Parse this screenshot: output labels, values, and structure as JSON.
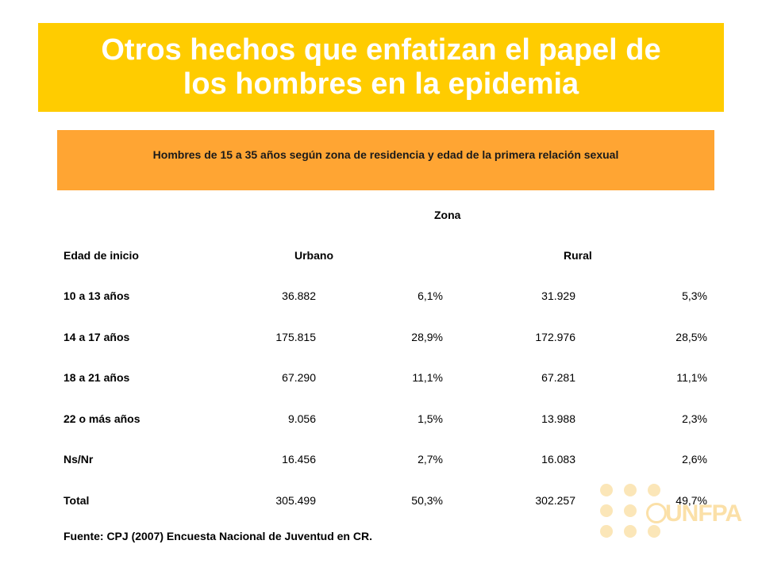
{
  "slide": {
    "title_line1": "Otros hechos que enfatizan el papel de",
    "title_line2": "los hombres en la epidemia",
    "subtitle": "Hombres de 15 a 35 años según zona de residencia y edad de la primera relación sexual"
  },
  "table": {
    "zona_header": "Zona",
    "col_edad": "Edad de inicio",
    "col_urbano": "Urbano",
    "col_rural": "Rural",
    "rows": [
      {
        "label": "10 a 13 años",
        "urb_n": "36.882",
        "urb_p": "6,1%",
        "rur_n": "31.929",
        "rur_p": "5,3%"
      },
      {
        "label": "14 a 17 años",
        "urb_n": "175.815",
        "urb_p": "28,9%",
        "rur_n": "172.976",
        "rur_p": "28,5%"
      },
      {
        "label": "18 a 21 años",
        "urb_n": "67.290",
        "urb_p": "11,1%",
        "rur_n": "67.281",
        "rur_p": "11,1%"
      },
      {
        "label": "22 o más años",
        "urb_n": "9.056",
        "urb_p": "1,5%",
        "rur_n": "13.988",
        "rur_p": "2,3%"
      },
      {
        "label": "Ns/Nr",
        "urb_n": "16.456",
        "urb_p": "2,7%",
        "rur_n": "16.083",
        "rur_p": "2,6%"
      },
      {
        "label": "Total",
        "urb_n": "305.499",
        "urb_p": "50,3%",
        "rur_n": "302.257",
        "rur_p": "49,7%"
      }
    ],
    "source": "Fuente: CPJ (2007) Encuesta Nacional de Juventud en CR."
  },
  "logo": {
    "text": "UNFPA",
    "icon": "un-emblem-icon"
  }
}
